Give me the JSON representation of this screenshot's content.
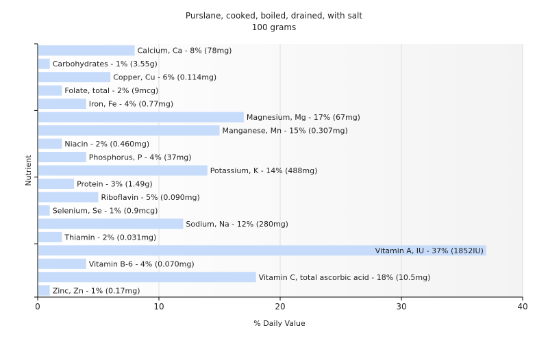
{
  "chart_data": {
    "type": "bar",
    "orientation": "horizontal",
    "title": "Purslane, cooked, boiled, drained, with salt",
    "subtitle": "100 grams",
    "xlabel": "% Daily Value",
    "ylabel": "Nutrient",
    "xlim": [
      0,
      40
    ],
    "xticks": [
      0,
      10,
      20,
      30,
      40
    ],
    "grid": true,
    "categories": [
      "Calcium, Ca",
      "Carbohydrates",
      "Copper, Cu",
      "Folate, total",
      "Iron, Fe",
      "Magnesium, Mg",
      "Manganese, Mn",
      "Niacin",
      "Phosphorus, P",
      "Potassium, K",
      "Protein",
      "Riboflavin",
      "Selenium, Se",
      "Sodium, Na",
      "Thiamin",
      "Vitamin A, IU",
      "Vitamin B-6",
      "Vitamin C, total ascorbic acid",
      "Zinc, Zn"
    ],
    "values": [
      8,
      1,
      6,
      2,
      4,
      17,
      15,
      2,
      4,
      14,
      3,
      5,
      1,
      12,
      2,
      37,
      4,
      18,
      1
    ],
    "data_labels": [
      "Calcium, Ca - 8% (78mg)",
      "Carbohydrates - 1% (3.55g)",
      "Copper, Cu - 6% (0.114mg)",
      "Folate, total - 2% (9mcg)",
      "Iron, Fe - 4% (0.77mg)",
      "Magnesium, Mg - 17% (67mg)",
      "Manganese, Mn - 15% (0.307mg)",
      "Niacin - 2% (0.460mg)",
      "Phosphorus, P - 4% (37mg)",
      "Potassium, K - 14% (488mg)",
      "Protein - 3% (1.49g)",
      "Riboflavin - 5% (0.090mg)",
      "Selenium, Se - 1% (0.9mcg)",
      "Sodium, Na - 12% (280mg)",
      "Thiamin - 2% (0.031mg)",
      "Vitamin A, IU - 37% (1852IU)",
      "Vitamin B-6 - 4% (0.070mg)",
      "Vitamin C, total ascorbic acid - 18% (10.5mg)",
      "Zinc, Zn - 1% (0.17mg)"
    ],
    "colors": {
      "bar": "#c6dcfa",
      "grid": "#dedede",
      "axis": "#000000",
      "text": "#222222"
    }
  }
}
